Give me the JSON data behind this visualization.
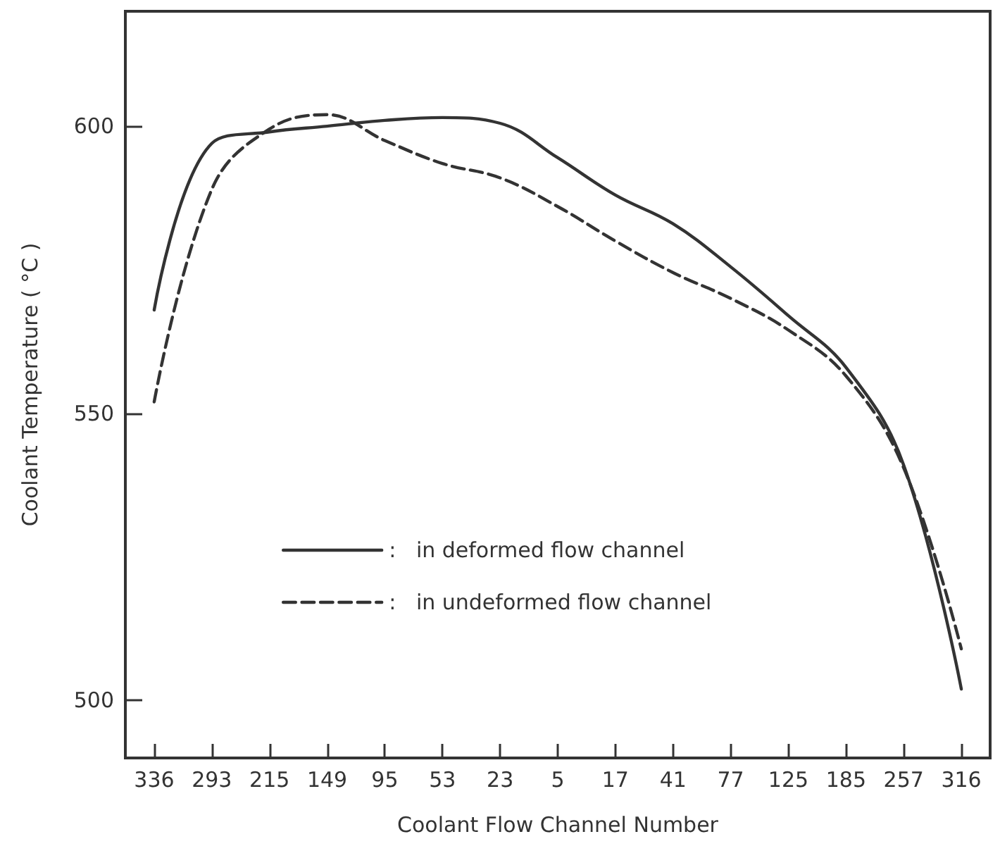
{
  "chart_data": {
    "type": "line",
    "xlabel": "Coolant Flow Channel Number",
    "ylabel": "Coolant Temperature ( °C )",
    "categories": [
      "336",
      "293",
      "215",
      "149",
      "95",
      "53",
      "23",
      "5",
      "17",
      "41",
      "77",
      "125",
      "185",
      "257",
      "316"
    ],
    "series": [
      {
        "name": ":   in deformed flow channel",
        "color": "#333333",
        "line_style": "solid",
        "values": [
          568,
          597,
          599,
          600,
          601,
          601.5,
          600.5,
          594.5,
          588,
          583,
          575.5,
          567,
          558,
          541,
          502
        ]
      },
      {
        "name": ":   in undeformed flow channel",
        "color": "#333333",
        "line_style": "dashed",
        "values": [
          552,
          589,
          599.5,
          602,
          597.5,
          593.5,
          591,
          586,
          580,
          574.5,
          570,
          564.5,
          556.5,
          540.5,
          509
        ]
      }
    ],
    "ylim": [
      490,
      620
    ],
    "yticks": [
      500,
      550,
      600
    ],
    "grid": false,
    "legend": "bottom left",
    "marker": "none"
  }
}
